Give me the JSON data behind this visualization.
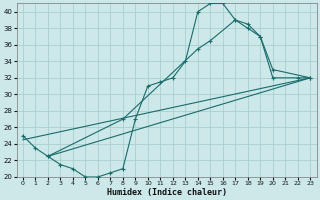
{
  "background_color": "#cce8e8",
  "grid_color": "#aad0d0",
  "line_color": "#1a6b6b",
  "xlabel": "Humidex (Indice chaleur)",
  "ylim": [
    20,
    41
  ],
  "xlim": [
    -0.5,
    23.5
  ],
  "yticks": [
    20,
    22,
    24,
    26,
    28,
    30,
    32,
    34,
    36,
    38,
    40
  ],
  "xticks": [
    0,
    1,
    2,
    3,
    4,
    5,
    6,
    7,
    8,
    9,
    10,
    11,
    12,
    13,
    14,
    15,
    16,
    17,
    18,
    19,
    20,
    21,
    22,
    23
  ],
  "line1_x": [
    0,
    1,
    2,
    3,
    4,
    5,
    6,
    7,
    8,
    9,
    10,
    11,
    12,
    13,
    14,
    15,
    16,
    17,
    18,
    19,
    20,
    22,
    23
  ],
  "line1_y": [
    25,
    23.5,
    22.5,
    21.5,
    21,
    20,
    20,
    20.5,
    21,
    27,
    31,
    31.5,
    32,
    34,
    40,
    41,
    41,
    39,
    38.5,
    37,
    32,
    32,
    32
  ],
  "line2_x": [
    0,
    23
  ],
  "line2_y": [
    24.5,
    32
  ],
  "line3_x": [
    2,
    8,
    14,
    15,
    17,
    18,
    19,
    20,
    23
  ],
  "line3_y": [
    22.5,
    27,
    35.5,
    36.5,
    39,
    38,
    37,
    33,
    32
  ],
  "line4_x": [
    2,
    23
  ],
  "line4_y": [
    22.5,
    32
  ]
}
